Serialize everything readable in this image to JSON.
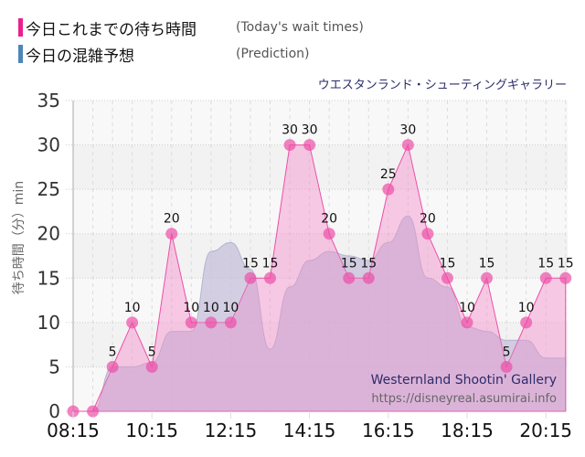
{
  "legend": {
    "items": [
      {
        "label_jp": "今日これまでの待ち時間",
        "label_en": "(Today's wait times)",
        "color": "#ec1f8e"
      },
      {
        "label_jp": "今日の混雑予想",
        "label_en": "(Prediction)",
        "color": "#4f86b8"
      }
    ]
  },
  "subtitle": "ウエスタンランド・シューティングギャラリー",
  "watermark": {
    "name": "Westernland Shootin' Gallery",
    "url": "https://disneyreal.asumirai.info"
  },
  "chart_data": {
    "type": "area",
    "title": "ウエスタンランド・シューティングギャラリー",
    "xlabel": "",
    "ylabel": "待ち時間（分）min",
    "ylim": [
      0,
      35
    ],
    "yticks": [
      0,
      5,
      10,
      15,
      20,
      25,
      30,
      35
    ],
    "xticks": [
      "08:15",
      "10:15",
      "12:15",
      "14:15",
      "16:15",
      "18:15",
      "20:15"
    ],
    "grid": true,
    "legend_position": "top-left",
    "x": [
      "08:15",
      "08:45",
      "09:15",
      "09:45",
      "10:15",
      "10:45",
      "11:15",
      "11:45",
      "12:15",
      "12:45",
      "13:15",
      "13:45",
      "14:15",
      "14:45",
      "15:15",
      "15:45",
      "16:15",
      "16:45",
      "17:15",
      "17:45",
      "18:15",
      "18:45",
      "19:15",
      "19:45",
      "20:15",
      "20:45"
    ],
    "series": [
      {
        "name": "今日これまでの待ち時間 (Today's wait times)",
        "color": "#ec1f8e",
        "values": [
          0,
          0,
          5,
          10,
          5,
          20,
          10,
          10,
          10,
          15,
          15,
          30,
          30,
          20,
          15,
          15,
          25,
          30,
          20,
          15,
          10,
          15,
          5,
          10,
          15,
          15
        ]
      },
      {
        "name": "今日の混雑予想 (Prediction)",
        "color": "#4f86b8",
        "values": [
          0,
          0,
          5,
          5,
          5.5,
          9,
          9,
          18,
          19,
          16,
          7,
          14,
          17,
          18,
          17.5,
          17,
          19,
          22,
          15,
          14,
          9.5,
          9,
          8,
          8,
          6,
          6
        ]
      }
    ]
  }
}
